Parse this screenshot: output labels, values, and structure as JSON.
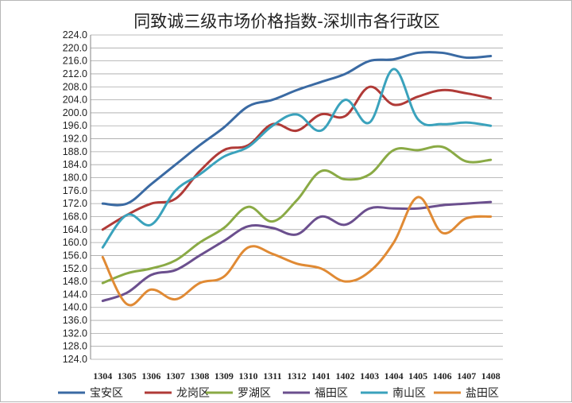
{
  "chart_data": {
    "type": "line",
    "title": "同致诚三级市场价格指数-深圳市各行政区",
    "xlabel": "",
    "ylabel": "",
    "ylim": [
      124.0,
      224.0
    ],
    "y_ticks": [
      "124.0",
      "128.0",
      "132.0",
      "136.0",
      "140.0",
      "144.0",
      "148.0",
      "152.0",
      "156.0",
      "160.0",
      "164.0",
      "168.0",
      "172.0",
      "176.0",
      "180.0",
      "184.0",
      "188.0",
      "192.0",
      "196.0",
      "200.0",
      "204.0",
      "208.0",
      "212.0",
      "216.0",
      "220.0",
      "224.0"
    ],
    "categories": [
      "1304",
      "1305",
      "1306",
      "1307",
      "1308",
      "1309",
      "1310",
      "1311",
      "1312",
      "1401",
      "1402",
      "1403",
      "1404",
      "1405",
      "1406",
      "1407",
      "1408"
    ],
    "grid": true,
    "legend_position": "bottom",
    "series": [
      {
        "name": "宝安区",
        "color": "#3a6aa3",
        "values": [
          172.0,
          172.0,
          178.0,
          184.0,
          190.0,
          195.5,
          202.0,
          204.0,
          207.0,
          209.5,
          212.0,
          216.0,
          216.5,
          218.5,
          218.5,
          217.0,
          217.5
        ]
      },
      {
        "name": "龙岗区",
        "color": "#b03a37",
        "values": [
          164.0,
          168.5,
          172.0,
          173.5,
          182.0,
          188.5,
          190.0,
          196.5,
          194.5,
          199.5,
          199.0,
          208.0,
          202.5,
          205.0,
          207.0,
          206.0,
          204.5
        ]
      },
      {
        "name": "罗湖区",
        "color": "#8aaa45",
        "values": [
          147.5,
          150.5,
          152.0,
          154.5,
          160.0,
          164.5,
          171.0,
          166.5,
          173.0,
          182.0,
          179.5,
          181.0,
          188.5,
          188.5,
          189.5,
          185.0,
          185.5
        ]
      },
      {
        "name": "福田区",
        "color": "#6b4f8e",
        "values": [
          142.0,
          144.5,
          150.0,
          151.5,
          156.0,
          160.5,
          165.0,
          164.5,
          162.5,
          168.0,
          165.5,
          170.5,
          170.5,
          170.5,
          171.5,
          172.0,
          172.5
        ]
      },
      {
        "name": "南山区",
        "color": "#3aa2bc",
        "values": [
          158.5,
          168.5,
          165.5,
          176.0,
          181.0,
          186.5,
          189.5,
          196.0,
          199.5,
          194.5,
          204.0,
          197.0,
          213.5,
          198.0,
          196.5,
          197.0,
          196.0
        ]
      },
      {
        "name": "盐田区",
        "color": "#e08a34",
        "values": [
          155.5,
          141.0,
          145.5,
          142.5,
          147.5,
          149.5,
          158.5,
          156.5,
          153.5,
          152.0,
          148.0,
          151.0,
          160.0,
          174.0,
          163.0,
          167.5,
          168.0
        ]
      }
    ]
  }
}
